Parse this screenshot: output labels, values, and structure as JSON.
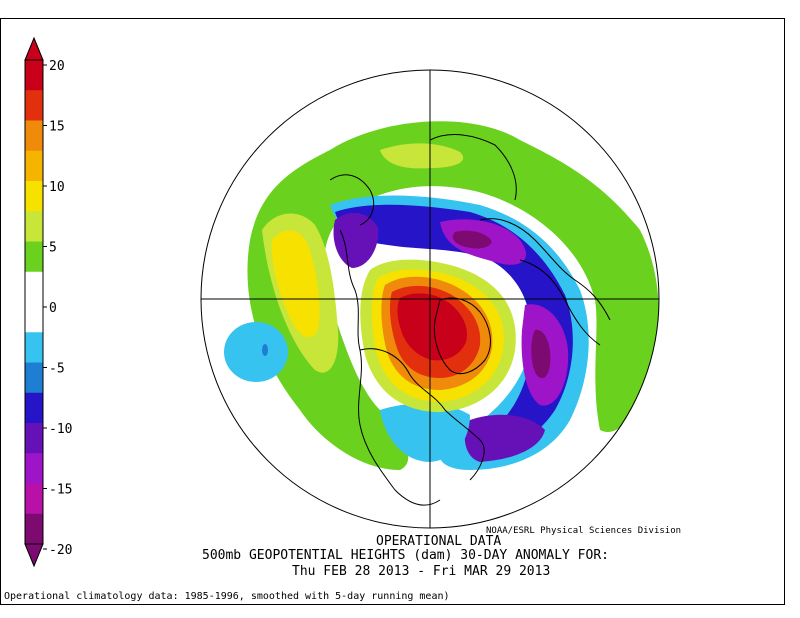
{
  "colorbar": {
    "ticks": [
      "20",
      "15",
      "10",
      "5",
      "0",
      "-5",
      "-10",
      "-15",
      "-20"
    ],
    "colors": [
      "#c8001a",
      "#e2300e",
      "#f08a0a",
      "#f5b400",
      "#f7e100",
      "#c8e63a",
      "#6ad11e",
      "#ffffff",
      "#ffffff",
      "#37c3f0",
      "#1e7fd2",
      "#2614c8",
      "#6611b8",
      "#9e14c8",
      "#b911a8",
      "#7c0a70"
    ]
  },
  "credit": "NOAA/ESRL Physical Sciences Division",
  "title_lines": [
    "OPERATIONAL DATA",
    "500mb GEOPOTENTIAL HEIGHTS (dam)   30-DAY ANOMALY FOR:",
    "Thu FEB 28 2013 - Fri MAR 29 2013"
  ],
  "footnote": "Operational climatology data: 1985-1996, smoothed with 5-day running mean)",
  "map": {
    "projection": "north-polar-stereographic",
    "anomaly_features": [
      {
        "name": "positive-anomaly-greenland-arctic",
        "sign": "positive",
        "peak": 20
      },
      {
        "name": "positive-anomaly-north-pacific",
        "sign": "positive",
        "peak": 10
      },
      {
        "name": "negative-anomaly-europe-siberia",
        "sign": "negative",
        "peak": -20
      },
      {
        "name": "negative-anomaly-eastern-north-america",
        "sign": "negative",
        "peak": -15
      },
      {
        "name": "negative-anomaly-atlantic-ring",
        "sign": "negative",
        "peak": -15
      },
      {
        "name": "negative-anomaly-pacific-cell",
        "sign": "negative",
        "peak": -5
      }
    ]
  }
}
